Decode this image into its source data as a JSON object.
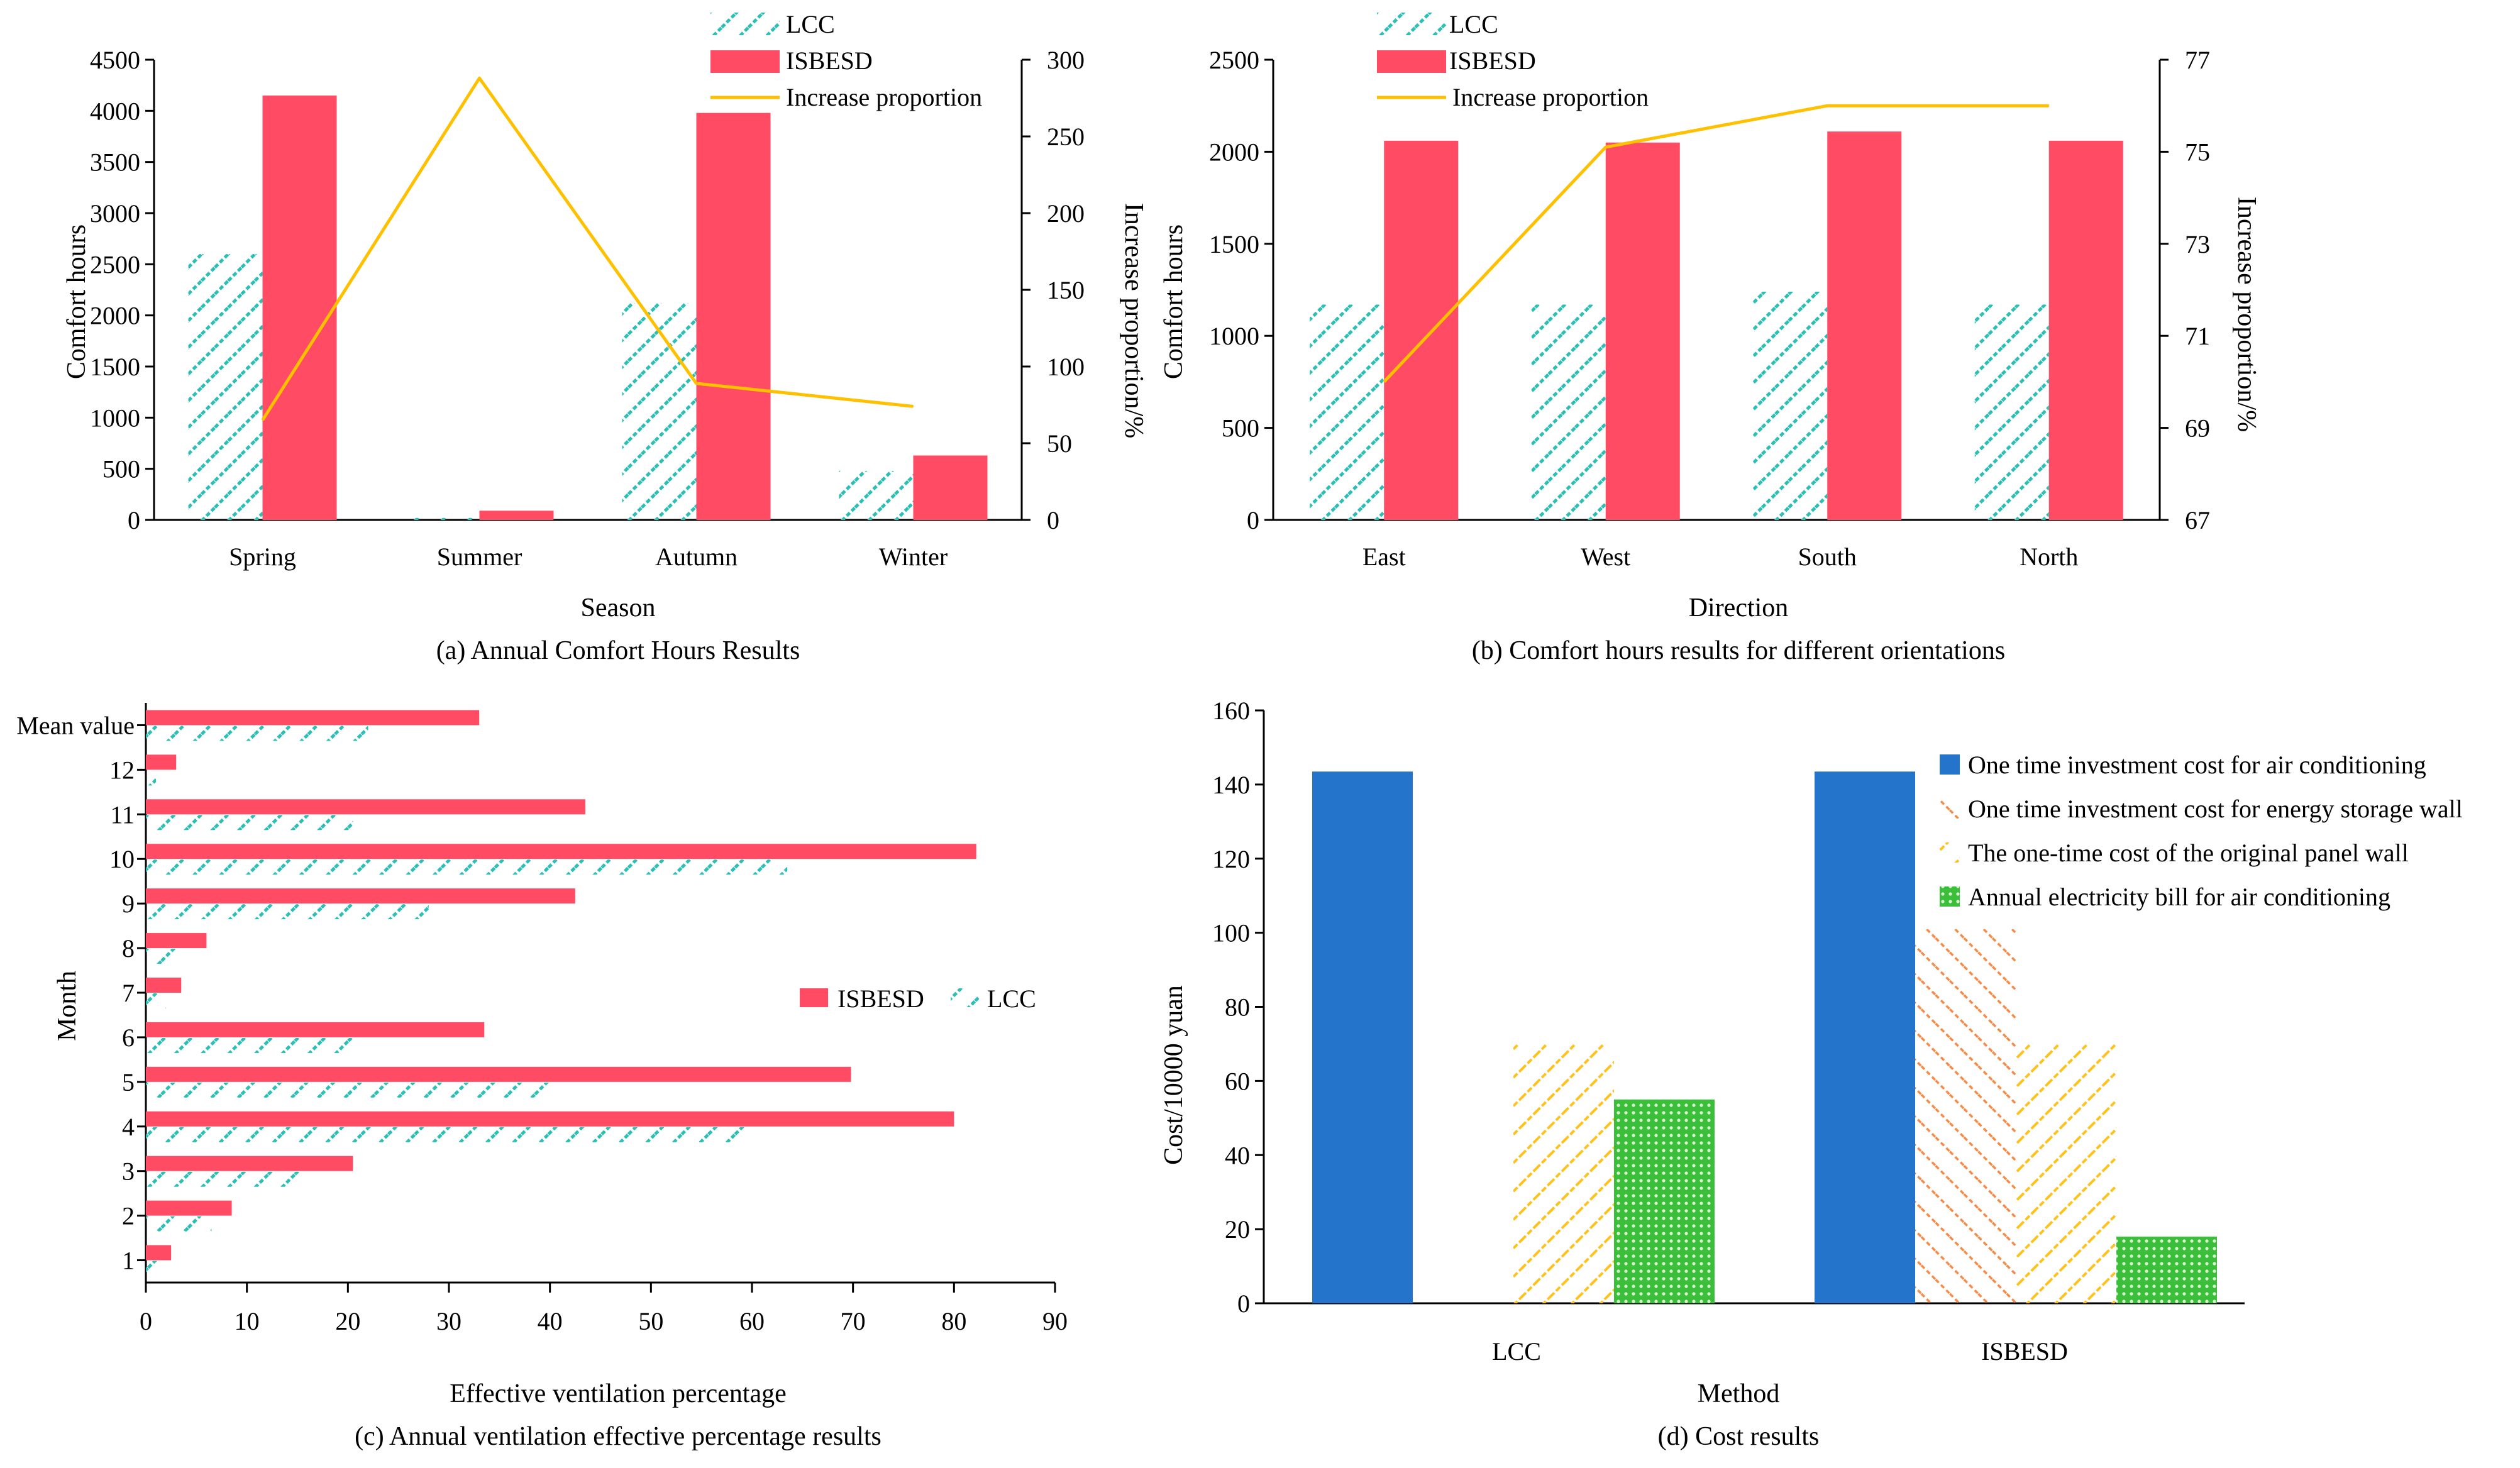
{
  "colors": {
    "lcc": "#2bbfb5",
    "isbesd": "#ff4b63",
    "line": "#ffc000",
    "blue": "#2574cc",
    "orange": "#f98a45",
    "yellow": "#ffc21a",
    "green": "#3bbf3b"
  },
  "chart_data": [
    {
      "id": "a",
      "type": "bar+line",
      "caption": "(a) Annual Comfort Hours Results",
      "xlabel": "Season",
      "ylabel": "Comfort hours",
      "ylabel_right": "Increase proportion/%",
      "categories": [
        "Spring",
        "Summer",
        "Autumn",
        "Winter"
      ],
      "ylim": [
        0,
        4500
      ],
      "yticks": [
        0,
        500,
        1000,
        1500,
        2000,
        2500,
        3000,
        3500,
        4000,
        4500
      ],
      "ylim_right": [
        0,
        300
      ],
      "yticks_right": [
        0,
        50,
        100,
        150,
        200,
        250,
        300
      ],
      "series": [
        {
          "name": "LCC",
          "kind": "bar",
          "values": [
            2600,
            20,
            2120,
            480
          ]
        },
        {
          "name": "ISBESD",
          "kind": "bar",
          "values": [
            4150,
            90,
            3980,
            630
          ]
        },
        {
          "name": "Increase proportion",
          "kind": "line",
          "axis": "right",
          "values": [
            65,
            288,
            89,
            74
          ]
        }
      ]
    },
    {
      "id": "b",
      "type": "bar+line",
      "caption": "(b) Comfort hours results for different orientations",
      "xlabel": "Direction",
      "ylabel": "Comfort hours",
      "ylabel_right": "Increase proportion/%",
      "categories": [
        "East",
        "West",
        "South",
        "North"
      ],
      "ylim": [
        0,
        2500
      ],
      "yticks": [
        0,
        500,
        1000,
        1500,
        2000,
        2500
      ],
      "ylim_right": [
        67,
        77
      ],
      "yticks_right": [
        67,
        69,
        71,
        73,
        75,
        77
      ],
      "series": [
        {
          "name": "LCC",
          "kind": "bar",
          "values": [
            1170,
            1170,
            1240,
            1170
          ]
        },
        {
          "name": "ISBESD",
          "kind": "bar",
          "values": [
            2060,
            2050,
            2110,
            2060
          ]
        },
        {
          "name": "Increase proportion",
          "kind": "line",
          "axis": "right",
          "values": [
            70.0,
            75.1,
            76.0,
            76.0
          ]
        }
      ]
    },
    {
      "id": "c",
      "type": "hbar",
      "caption": "(c) Annual ventilation effective percentage results",
      "xlabel": "Effective ventilation percentage",
      "ylabel": "Month",
      "categories": [
        "1",
        "2",
        "3",
        "4",
        "5",
        "6",
        "7",
        "8",
        "9",
        "10",
        "11",
        "12",
        "Mean value"
      ],
      "xlim": [
        0,
        90
      ],
      "xticks": [
        0,
        10,
        20,
        30,
        40,
        50,
        60,
        70,
        80,
        90
      ],
      "series": [
        {
          "name": "ISBESD",
          "values": [
            2.5,
            8.5,
            20.5,
            80,
            69.8,
            33.5,
            3.5,
            6,
            42.5,
            82.2,
            43.5,
            3,
            33
          ]
        },
        {
          "name": "LCC",
          "values": [
            1.8,
            6.5,
            15.5,
            60,
            40,
            20.5,
            2,
            3.5,
            28,
            63.5,
            20.5,
            1,
            22
          ]
        }
      ]
    },
    {
      "id": "d",
      "type": "bar",
      "caption": "(d) Cost results",
      "xlabel": "Method",
      "ylabel": "Cost/10000 yuan",
      "categories": [
        "LCC",
        "ISBESD"
      ],
      "ylim": [
        0,
        160
      ],
      "yticks": [
        0,
        20,
        40,
        60,
        80,
        100,
        120,
        140,
        160
      ],
      "series": [
        {
          "name": "One time investment cost for air conditioning",
          "values": [
            143.5,
            143.5
          ]
        },
        {
          "name": "One time investment cost for energy storage wall",
          "values": [
            0,
            101
          ]
        },
        {
          "name": "The one-time cost of the original panel wall",
          "values": [
            70,
            70
          ]
        },
        {
          "name": "Annual electricity bill for air conditioning",
          "values": [
            55,
            18
          ]
        }
      ]
    }
  ]
}
